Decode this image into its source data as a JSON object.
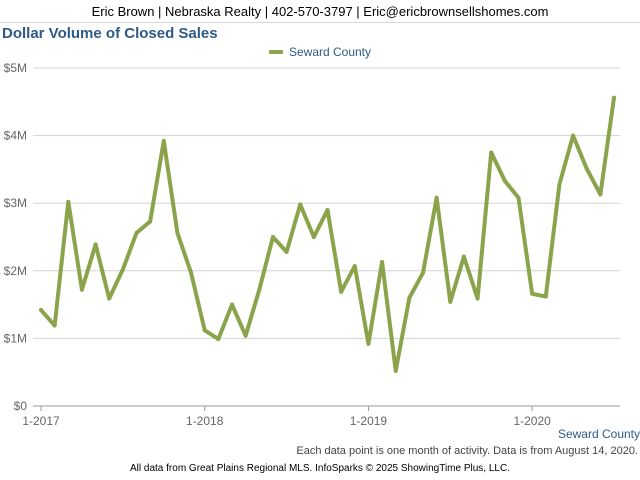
{
  "header": {
    "contact": "Eric Brown | Nebraska Realty | 402-570-3797 | Eric@ericbrownsellshomes.com"
  },
  "colors": {
    "series": "#8ba44c",
    "title": "#2e5a87",
    "grid": "#d3d3d3"
  },
  "chart_data": {
    "type": "line",
    "title": "Dollar Volume of Closed Sales",
    "ylim": [
      0,
      5
    ],
    "y_ticks": [
      "$0",
      "$1M",
      "$2M",
      "$3M",
      "$4M",
      "$5M"
    ],
    "x_ticks": [
      "1-2017",
      "1-2018",
      "1-2019",
      "1-2020"
    ],
    "grid": "horizontal",
    "legend": "top-center",
    "series": [
      {
        "name": "Seward County",
        "x": [
          "2017-01",
          "2017-02",
          "2017-03",
          "2017-04",
          "2017-05",
          "2017-06",
          "2017-07",
          "2017-08",
          "2017-09",
          "2017-10",
          "2017-11",
          "2017-12",
          "2018-01",
          "2018-02",
          "2018-03",
          "2018-04",
          "2018-05",
          "2018-06",
          "2018-07",
          "2018-08",
          "2018-09",
          "2018-10",
          "2018-11",
          "2018-12",
          "2019-01",
          "2019-02",
          "2019-03",
          "2019-04",
          "2019-05",
          "2019-06",
          "2019-07",
          "2019-08",
          "2019-09",
          "2019-10",
          "2019-11",
          "2019-12",
          "2020-01",
          "2020-02",
          "2020-03",
          "2020-04",
          "2020-05",
          "2020-06",
          "2020-07"
        ],
        "values": [
          1.42,
          1.19,
          3.02,
          1.72,
          2.39,
          1.59,
          2.02,
          2.56,
          2.73,
          3.92,
          2.56,
          1.97,
          1.12,
          0.99,
          1.5,
          1.04,
          1.72,
          2.5,
          2.28,
          2.98,
          2.5,
          2.9,
          1.69,
          2.07,
          0.92,
          2.13,
          0.52,
          1.6,
          1.97,
          3.08,
          1.54,
          2.21,
          1.59,
          3.75,
          3.33,
          3.08,
          1.66,
          1.62,
          3.28,
          4.0,
          3.51,
          3.13,
          4.56
        ]
      }
    ]
  },
  "footer": {
    "series_label": "Seward County",
    "note": "Each data point is one month of activity. Data is from August 14, 2020.",
    "credit": "All data from Great Plains Regional MLS. InfoSparks © 2025 ShowingTime Plus, LLC."
  }
}
